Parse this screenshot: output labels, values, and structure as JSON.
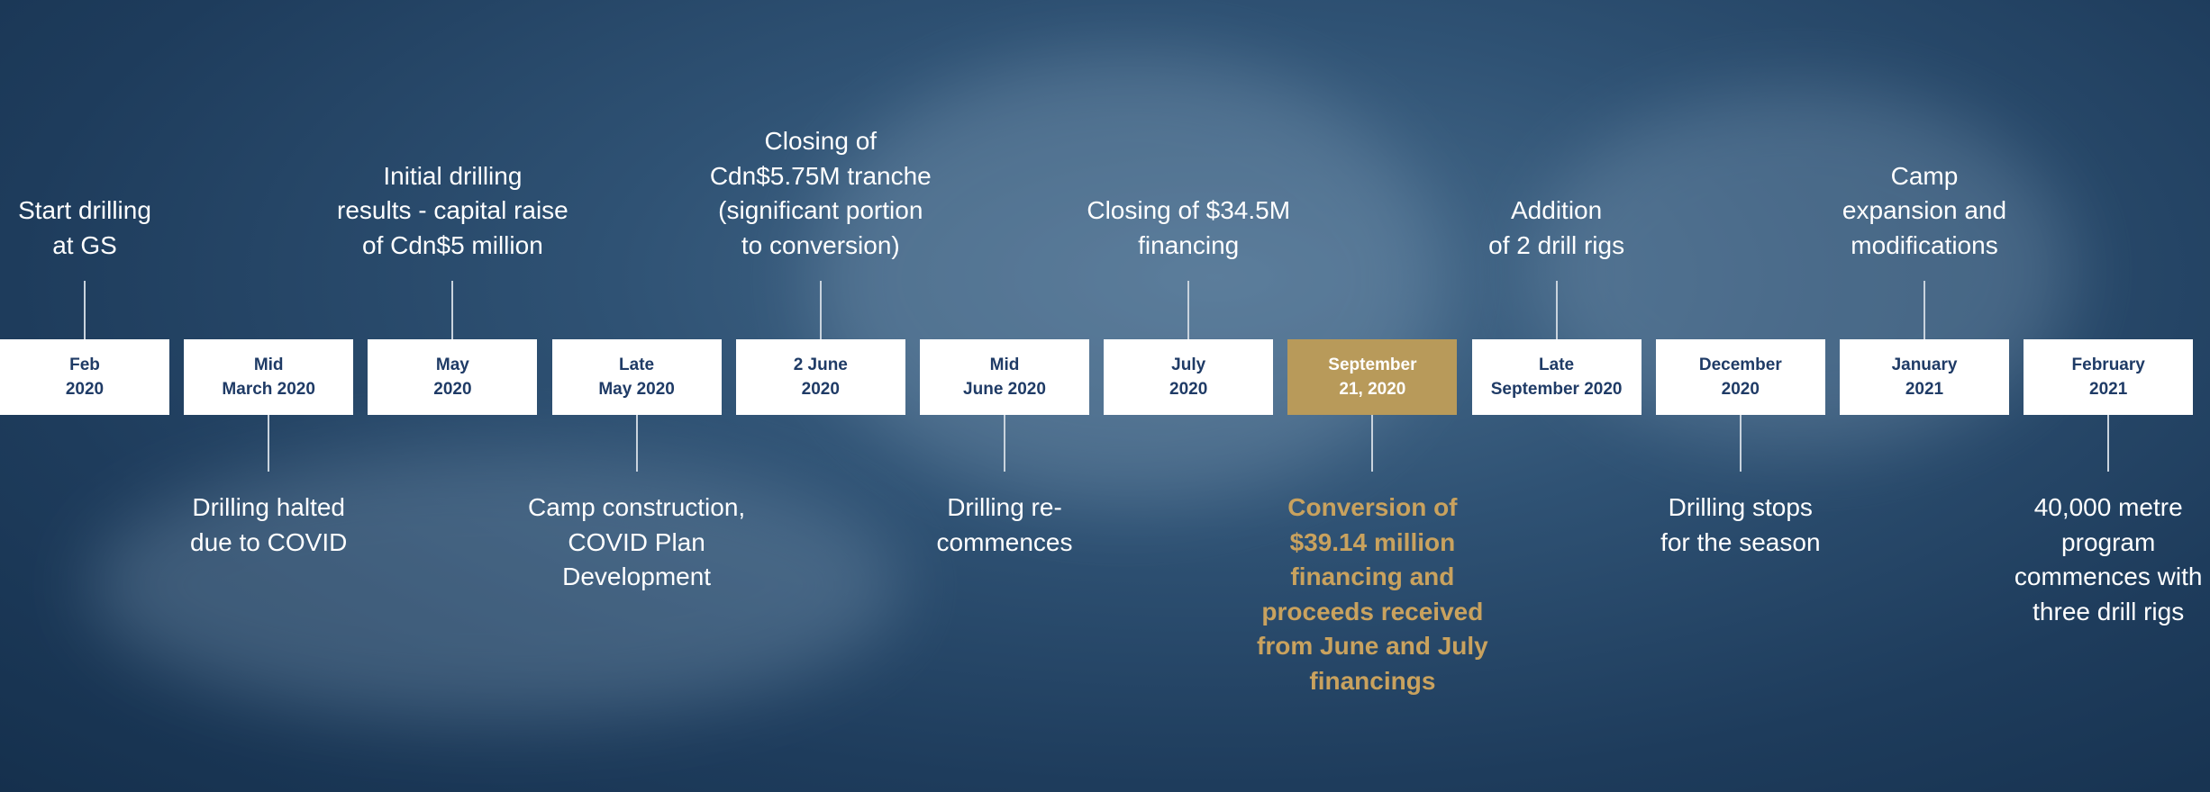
{
  "timeline": {
    "items": [
      {
        "date": [
          "Feb",
          "2020"
        ],
        "event": [
          "Start drilling",
          "at GS"
        ]
      },
      {
        "date": [
          "Mid",
          "March 2020"
        ],
        "event": [
          "Drilling halted",
          "due to COVID"
        ]
      },
      {
        "date": [
          "May",
          "2020"
        ],
        "event": [
          "Initial drilling",
          "results - capital raise",
          "of Cdn$5 million"
        ]
      },
      {
        "date": [
          "Late",
          "May 2020"
        ],
        "event": [
          "Camp construction,",
          "COVID Plan",
          "Development"
        ]
      },
      {
        "date": [
          "2 June",
          "2020"
        ],
        "event": [
          "Closing of",
          "Cdn$5.75M tranche",
          "(significant portion",
          "to conversion)"
        ]
      },
      {
        "date": [
          "Mid",
          "June 2020"
        ],
        "event": [
          "Drilling re-",
          "commences"
        ]
      },
      {
        "date": [
          "July",
          "2020"
        ],
        "event": [
          "Closing of $34.5M",
          "financing"
        ]
      },
      {
        "date": [
          "September",
          "21, 2020"
        ],
        "event": [
          "Conversion of",
          "$39.14 million",
          "financing and",
          "proceeds received",
          "from June and July",
          "financings"
        ],
        "highlighted": true
      },
      {
        "date": [
          "Late",
          "September 2020"
        ],
        "event": [
          "Addition",
          "of 2 drill rigs"
        ]
      },
      {
        "date": [
          "December",
          "2020"
        ],
        "event": [
          "Drilling stops",
          "for the season"
        ]
      },
      {
        "date": [
          "January",
          "2021"
        ],
        "event": [
          "Camp",
          "expansion and",
          "modifications"
        ]
      },
      {
        "date": [
          "February",
          "2021"
        ],
        "event": [
          "40,000 metre",
          "program",
          "commences with",
          "three drill rigs"
        ]
      }
    ]
  }
}
